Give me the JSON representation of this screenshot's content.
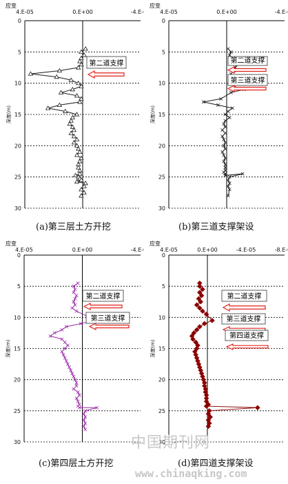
{
  "charts": [
    {
      "type": "line",
      "top_label": "应变",
      "x_ticks": [
        "4.E-05",
        "0.E+00",
        "-4.E-05"
      ],
      "x_tick_values": [
        4e-05,
        0,
        -4e-05
      ],
      "xlim": [
        4e-05,
        -4e-05
      ],
      "ylabel": "深度(m)",
      "y_ticks": [
        "0",
        "5",
        "10",
        "15",
        "20",
        "25",
        "30"
      ],
      "ylim": [
        0,
        30
      ],
      "marker": "triangle",
      "color": "#1a1a1a",
      "caption": "(a)第三层土方开挖",
      "annotations": [
        "第二道支撑"
      ],
      "series": [
        {
          "x": [
            -2e-06,
            1e-06,
            -1e-06,
            1e-06,
            2e-06,
            1e-06,
            3e-06,
            1.6e-05,
            3.6e-05,
            1.8e-05,
            8e-06,
            3e-06,
            1e-06,
            7e-06,
            1.5e-05,
            4e-06,
            1e-06,
            2e-06,
            1.6e-05,
            2.4e-05,
            1.2e-05,
            4e-06,
            7e-06,
            8e-06,
            9e-06,
            7e-06,
            6e-06,
            8e-06,
            6e-06,
            4e-06,
            6e-06,
            4e-06,
            3e-06,
            2e-06,
            4e-06,
            1e-06,
            2e-06,
            3e-06,
            3e-06,
            2e-06,
            2e-06,
            5e-06,
            3e-06,
            2e-06,
            1e-06,
            4e-06,
            -2e-06,
            -1e-06,
            1e-06,
            -1e-06,
            1e-06
          ],
          "y": [
            4.5,
            5.0,
            5.5,
            6.0,
            6.5,
            7.0,
            7.5,
            8.0,
            8.5,
            9.0,
            9.5,
            10.0,
            10.5,
            11.0,
            11.5,
            12.0,
            12.5,
            13.0,
            13.5,
            14.0,
            14.5,
            15.0,
            15.5,
            16.0,
            16.5,
            17.0,
            17.5,
            18.0,
            18.5,
            19.0,
            19.5,
            20.0,
            20.5,
            21.0,
            21.5,
            22.0,
            22.5,
            23.0,
            23.5,
            24.0,
            24.5,
            24.75,
            25.0,
            25.25,
            25.5,
            25.75,
            26.0,
            26.5,
            27.0,
            27.5,
            28.0
          ]
        }
      ]
    },
    {
      "type": "line",
      "top_label": "应变",
      "x_ticks": [
        "4.E-05",
        "0.E+00",
        "-4.E-05"
      ],
      "x_tick_values": [
        4e-05,
        0,
        -4e-05
      ],
      "xlim": [
        4e-05,
        -4e-05
      ],
      "ylabel": "深度(m)",
      "y_ticks": [
        "0",
        "5",
        "10",
        "15",
        "20",
        "25",
        "30"
      ],
      "ylim": [
        0,
        30
      ],
      "marker": "x",
      "color": "#1a1a1a",
      "caption": "(b)第三道支撑架设",
      "annotations": [
        "第二道支撑",
        "第三道支撑"
      ],
      "series": [
        {
          "x": [
            -1e-06,
            -3e-06,
            -2e-06,
            -4e-06,
            -6e-06,
            -7e-06,
            -6e-06,
            -5e-06,
            -3e-06,
            -2e-06,
            -5e-06,
            -1.2e-05,
            -3e-06,
            4e-06,
            1.6e-05,
            6e-06,
            -4e-06,
            -1e-06,
            1e-06,
            -2e-06,
            1e-06,
            2e-06,
            1e-06,
            3e-06,
            1e-06,
            3e-06,
            2e-06,
            1e-06,
            2e-06,
            1e-06,
            3e-06,
            2e-06,
            1e-06,
            2e-06,
            1e-06,
            1e-06,
            1e-06,
            2e-06,
            1e-06,
            1e-06,
            -1.1e-05,
            -2e-06,
            -1e-06,
            -2e-06,
            -1e-06,
            -2e-06,
            -1e-06
          ],
          "y": [
            4.5,
            5.0,
            5.5,
            6.0,
            6.5,
            7.0,
            7.5,
            8.0,
            8.5,
            9.0,
            10.5,
            11.0,
            11.5,
            12.5,
            13.0,
            13.5,
            14.0,
            14.5,
            15.0,
            15.5,
            16.0,
            16.5,
            17.0,
            17.5,
            18.0,
            18.5,
            19.0,
            19.5,
            20.0,
            20.5,
            21.0,
            21.5,
            22.0,
            22.5,
            23.0,
            23.5,
            24.0,
            24.25,
            24.5,
            24.75,
            24.5,
            25.0,
            25.5,
            26.0,
            26.5,
            27.0,
            28.0
          ]
        }
      ]
    },
    {
      "type": "line",
      "top_label": "应变",
      "x_ticks": [
        "4.E-05",
        "0.E+00",
        "-4.E-05"
      ],
      "x_tick_values": [
        4e-05,
        0,
        -4e-05
      ],
      "xlim": [
        4e-05,
        -4e-05
      ],
      "ylabel": "深度(m)",
      "y_ticks": [
        "0",
        "5",
        "10",
        "15",
        "20",
        "25",
        "30"
      ],
      "ylim": [
        0,
        30
      ],
      "marker": "x",
      "color": "#9b2aa8",
      "caption": "(c)第四层土方开挖",
      "annotations": [
        "第二道支撑",
        "第三道支撑"
      ],
      "series": [
        {
          "x": [
            3e-06,
            6e-06,
            5e-06,
            6e-06,
            4e-06,
            5e-06,
            6e-06,
            5e-06,
            7e-06,
            4e-06,
            -5e-06,
            -8e-06,
            1e-06,
            1.1e-05,
            1.4e-05,
            1.9e-05,
            2.2e-05,
            1.4e-05,
            1.2e-05,
            1e-05,
            1.2e-05,
            1.4e-05,
            1.3e-05,
            1.2e-05,
            1.1e-05,
            1e-05,
            9e-06,
            8e-06,
            7e-06,
            6e-06,
            5e-06,
            4e-06,
            4e-06,
            6e-06,
            3e-06,
            2e-06,
            4e-06,
            3e-06,
            2e-06,
            3e-06,
            2e-06,
            -1e-05,
            -2e-06,
            -1e-06,
            -2e-06,
            -1e-06,
            -2e-06,
            -1e-06,
            -2e-06
          ],
          "y": [
            4.5,
            5.0,
            5.5,
            6.0,
            6.5,
            7.0,
            7.5,
            8.0,
            8.5,
            9.0,
            10.0,
            10.5,
            11.0,
            11.5,
            12.0,
            12.5,
            13.0,
            13.5,
            14.0,
            14.5,
            15.0,
            15.5,
            16.0,
            16.5,
            17.0,
            17.5,
            18.0,
            18.5,
            19.0,
            19.5,
            20.0,
            20.5,
            21.0,
            21.5,
            22.0,
            22.5,
            23.0,
            23.5,
            24.0,
            24.25,
            24.5,
            24.5,
            25.0,
            25.5,
            26.0,
            26.5,
            27.0,
            27.5,
            28.0
          ]
        }
      ]
    },
    {
      "type": "line",
      "top_label": "应变",
      "x_ticks": [
        "4.E-05",
        "0.E+00",
        "-4.E-05",
        "-8.E-05"
      ],
      "x_tick_values": [
        4e-05,
        0,
        -4e-05,
        -8e-05
      ],
      "xlim": [
        4e-05,
        -8e-05
      ],
      "ylabel": "深度(m)",
      "y_ticks": [
        "0",
        "5",
        "10",
        "15",
        "20",
        "25",
        "30"
      ],
      "ylim": [
        0,
        30
      ],
      "marker": "diamond",
      "color": "#8b0000",
      "caption": "(d)第四道支撑架设",
      "annotations": [
        "第二道支撑",
        "第三道支撑",
        "第四道支撑"
      ],
      "series": [
        {
          "x": [
            8e-06,
            8e-06,
            5e-06,
            8e-06,
            6e-06,
            9e-06,
            7e-06,
            1.1e-05,
            8e-06,
            5e-06,
            1e-06,
            -5e-06,
            3e-06,
            8e-06,
            1.1e-05,
            1.4e-05,
            1.6e-05,
            1.5e-05,
            1.2e-05,
            1e-05,
            1.1e-05,
            1.3e-05,
            1.2e-05,
            1.1e-05,
            1e-05,
            9e-06,
            8e-06,
            7e-06,
            6e-06,
            5e-06,
            4e-06,
            3e-06,
            3e-06,
            2e-06,
            2e-06,
            1e-06,
            1e-06,
            1e-06,
            -1e-06,
            1e-06,
            -5.2e-05,
            -2e-06,
            -1e-06,
            -3e-06,
            -1e-06,
            -2e-06,
            -1e-06
          ],
          "y": [
            4.5,
            5.0,
            5.5,
            6.0,
            6.5,
            7.0,
            7.5,
            8.0,
            8.5,
            9.0,
            9.5,
            10.5,
            11.0,
            11.5,
            12.0,
            12.5,
            13.0,
            13.5,
            14.0,
            14.5,
            15.0,
            15.5,
            16.0,
            16.5,
            17.0,
            17.5,
            18.0,
            18.5,
            19.0,
            19.5,
            20.0,
            20.5,
            21.0,
            21.5,
            22.0,
            22.5,
            23.0,
            23.5,
            24.0,
            24.25,
            24.5,
            25.0,
            25.5,
            26.0,
            26.5,
            27.0,
            27.5
          ]
        }
      ]
    }
  ],
  "watermark": {
    "cn": "中国期刊网",
    "url": "www.chinaqking.com"
  }
}
